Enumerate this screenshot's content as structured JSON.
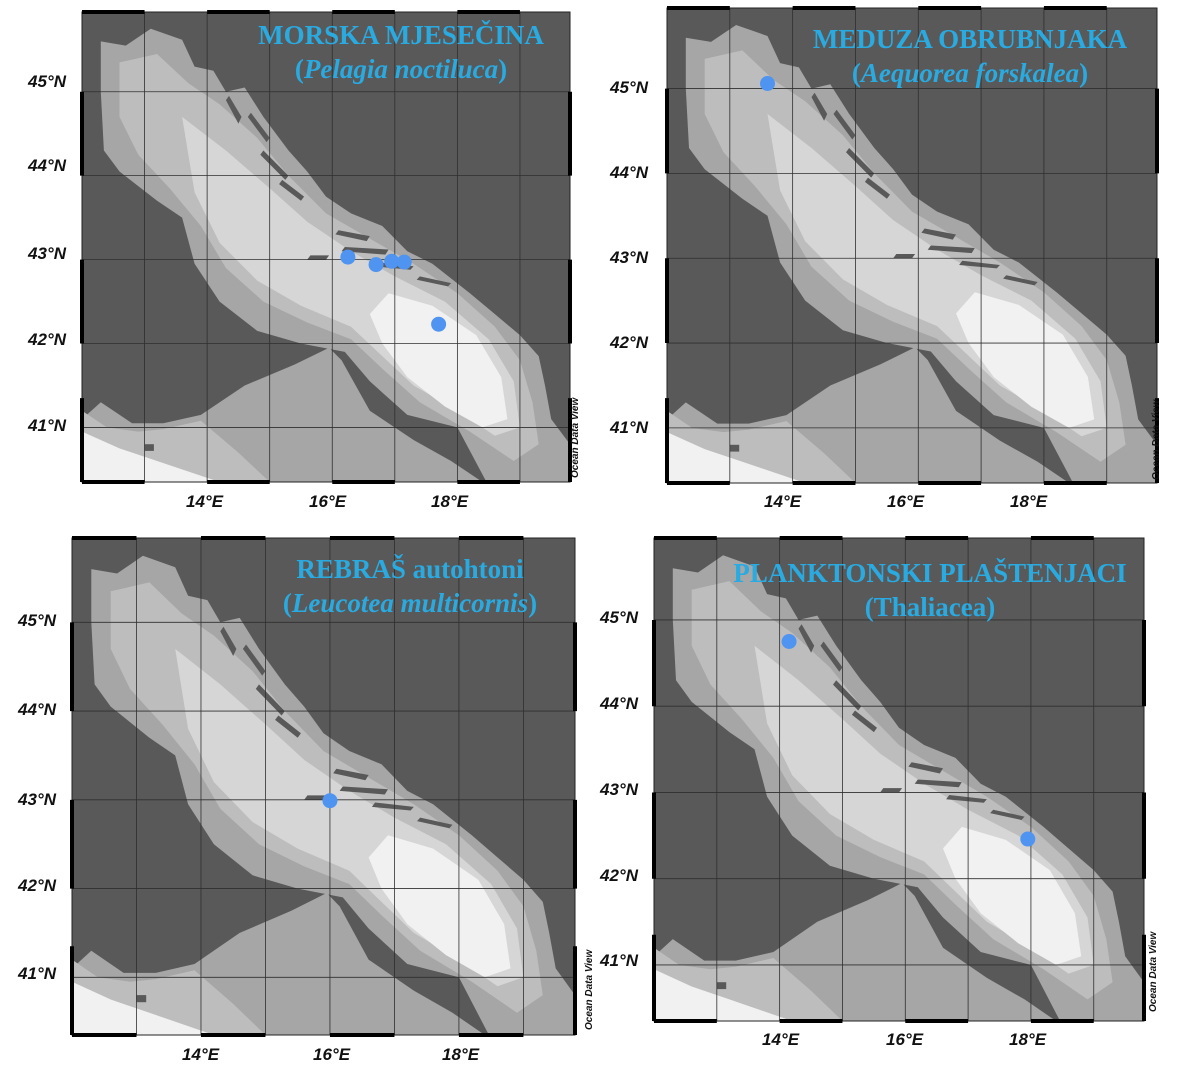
{
  "lat_labels": [
    "45°N",
    "44°N",
    "43°N",
    "42°N",
    "41°N"
  ],
  "lon_labels": [
    "14°E",
    "16°E",
    "18°E"
  ],
  "credit": "Ocean Data View",
  "colors": {
    "deep": "#f1f1f1",
    "mid": "#d6d6d6",
    "shelf": "#bdbdbd",
    "coast": "#a6a6a6",
    "land": "#595959",
    "grid": "#2f2f2f",
    "station": "#4f94f0",
    "title": "#29aae1"
  },
  "panels": [
    {
      "title_line1": "MORSKA MJESEČINA",
      "title_open": "(",
      "title_sci": "Pelagia noctiluca",
      "title_close": ")",
      "stations": [
        {
          "lon": 16.25,
          "lat": 43.03
        },
        {
          "lon": 16.7,
          "lat": 42.94
        },
        {
          "lon": 16.95,
          "lat": 42.98
        },
        {
          "lon": 17.15,
          "lat": 42.97
        },
        {
          "lon": 17.7,
          "lat": 42.23
        }
      ]
    },
    {
      "title_line1": "MEDUZA OBRUBNJAKA",
      "title_open": "(",
      "title_sci": "Aequorea forskalea",
      "title_close": ")",
      "stations": [
        {
          "lon": 13.6,
          "lat": 45.06
        }
      ]
    },
    {
      "title_line1": "REBRAŠ autohtoni",
      "title_open": "(",
      "title_sci": "Leucotea multicornis",
      "title_close": ")",
      "stations": [
        {
          "lon": 16.0,
          "lat": 42.99
        }
      ]
    },
    {
      "title_line1": "PLANKTONSKI PLAŠTENJACI",
      "title_open": "(",
      "title_sci": "",
      "title_close": "Thaliacea)",
      "stations": [
        {
          "lon": 14.15,
          "lat": 44.75
        },
        {
          "lon": 17.95,
          "lat": 42.46
        }
      ]
    }
  ]
}
